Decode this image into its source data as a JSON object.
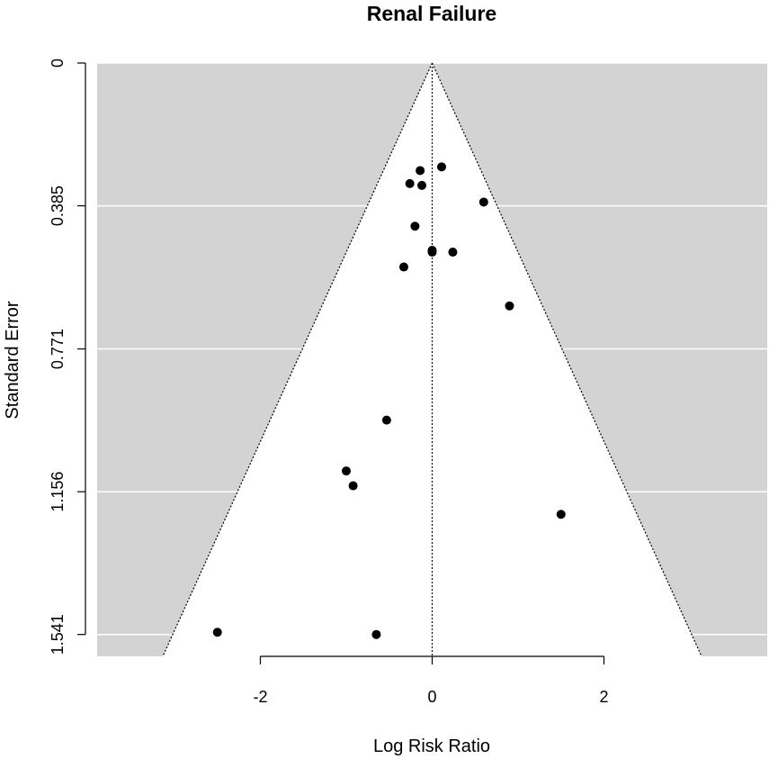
{
  "chart_data": {
    "type": "scatter",
    "subtype": "funnel-plot",
    "title": "Renal Failure",
    "xlabel": "Log Risk Ratio",
    "ylabel": "Standard Error",
    "xlim": [
      -3.9,
      3.9
    ],
    "ylim": [
      0,
      1.6
    ],
    "y_reversed": true,
    "x_ticks": [
      -2,
      0,
      2
    ],
    "x_tick_labels": [
      "-2",
      "0",
      "2"
    ],
    "y_ticks": [
      0,
      0.385,
      0.771,
      1.156,
      1.541
    ],
    "y_tick_labels": [
      "0",
      "0.385",
      "0.771",
      "1.156",
      "1.541"
    ],
    "funnel_center": 0,
    "funnel_multiplier": 1.96,
    "funnel_max_se": 1.6,
    "background_color": "#d3d3d3",
    "funnel_fill": "#ffffff",
    "grid": true,
    "points": [
      {
        "x": 0.11,
        "y": 0.28
      },
      {
        "x": -0.14,
        "y": 0.29
      },
      {
        "x": -0.26,
        "y": 0.325
      },
      {
        "x": -0.12,
        "y": 0.33
      },
      {
        "x": 0.6,
        "y": 0.375
      },
      {
        "x": -0.2,
        "y": 0.44
      },
      {
        "x": 0.0,
        "y": 0.505
      },
      {
        "x": 0.0,
        "y": 0.51
      },
      {
        "x": 0.24,
        "y": 0.51
      },
      {
        "x": -0.33,
        "y": 0.55
      },
      {
        "x": 0.9,
        "y": 0.655
      },
      {
        "x": -0.53,
        "y": 0.963
      },
      {
        "x": -1.0,
        "y": 1.1
      },
      {
        "x": -0.92,
        "y": 1.14
      },
      {
        "x": 1.5,
        "y": 1.217
      },
      {
        "x": -2.5,
        "y": 1.535
      },
      {
        "x": -0.65,
        "y": 1.541
      }
    ]
  }
}
